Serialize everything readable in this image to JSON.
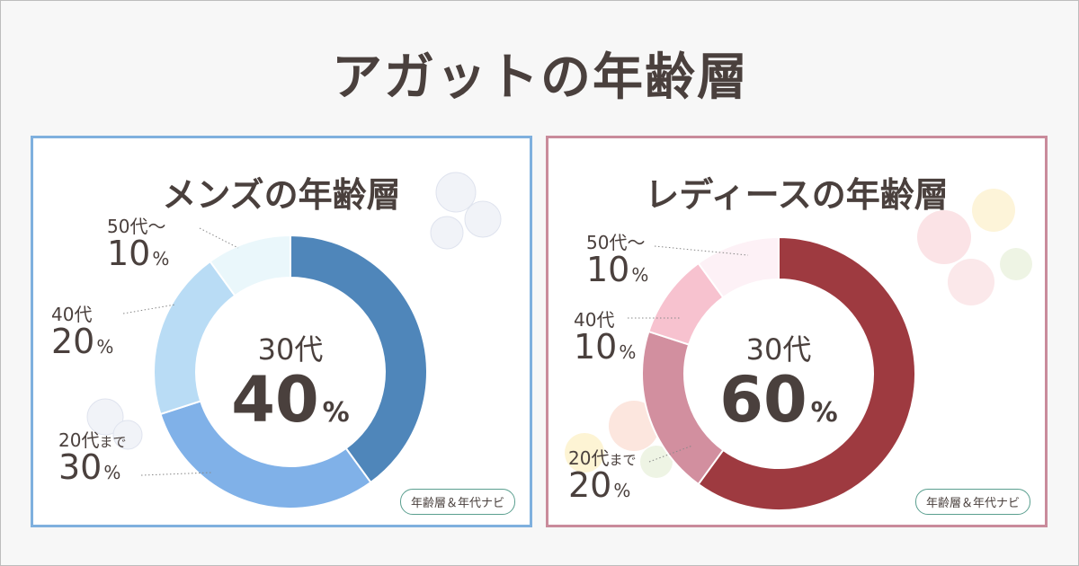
{
  "title": "アガットの年齢層",
  "badge_label": "年齢層＆年代ナビ",
  "colors": {
    "men_border": "#7fb0de",
    "women_border": "#c98b9b"
  },
  "chart_data": [
    {
      "type": "pie",
      "title": "メンズの年齢層",
      "categories": [
        "30代",
        "20代まで",
        "40代",
        "50代～"
      ],
      "values": [
        40,
        30,
        20,
        10
      ],
      "colors": [
        "#4f86ba",
        "#80b1e8",
        "#b9dcf5",
        "#eaf7fb"
      ],
      "center": {
        "age": "30代",
        "pct": "40",
        "unit": "%"
      },
      "labels": [
        {
          "age": "50代～",
          "age_suffix": "",
          "pct": "10",
          "unit": "%"
        },
        {
          "age": "40代",
          "age_suffix": "",
          "pct": "20",
          "unit": "%"
        },
        {
          "age": "20代",
          "age_suffix": "まで",
          "pct": "30",
          "unit": "%"
        }
      ]
    },
    {
      "type": "pie",
      "title": "レディースの年齢層",
      "categories": [
        "30代",
        "20代まで",
        "40代",
        "50代～"
      ],
      "values": [
        60,
        20,
        10,
        10
      ],
      "colors": [
        "#9e3a40",
        "#d28f9f",
        "#f7c2cf",
        "#fdf1f6"
      ],
      "center": {
        "age": "30代",
        "pct": "60",
        "unit": "%"
      },
      "labels": [
        {
          "age": "50代～",
          "age_suffix": "",
          "pct": "10",
          "unit": "%"
        },
        {
          "age": "40代",
          "age_suffix": "",
          "pct": "10",
          "unit": "%"
        },
        {
          "age": "20代",
          "age_suffix": "まで",
          "pct": "20",
          "unit": "%"
        }
      ]
    }
  ]
}
